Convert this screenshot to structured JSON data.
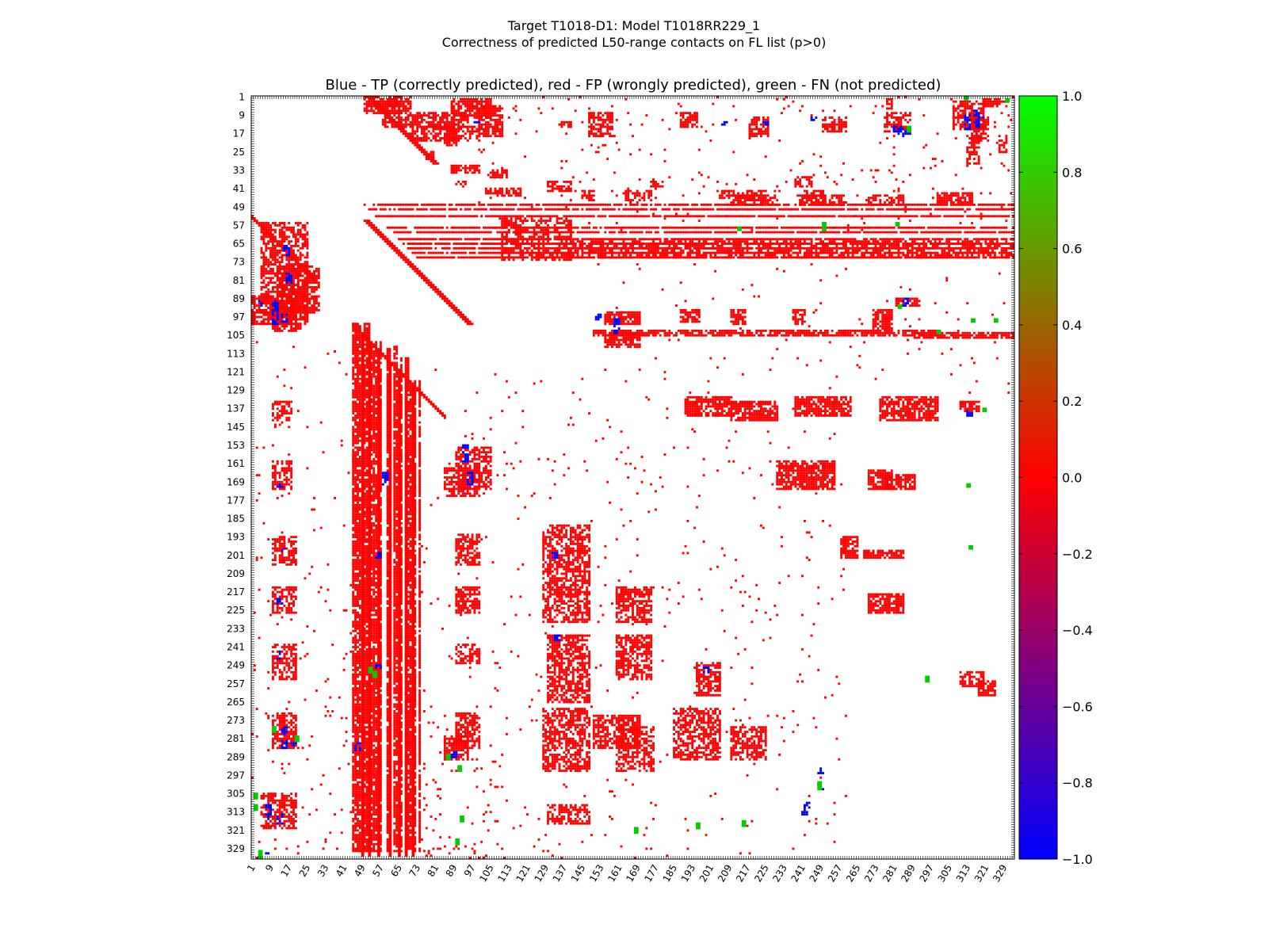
{
  "chart_data": {
    "type": "heatmap",
    "title": "Target T1018-D1: Model T1018RR229_1",
    "subtitle": "Correctness of predicted L50-range contacts on FL list (p>0)",
    "plot_title": "Blue - TP (correctly predicted), red - FP (wrongly predicted), green - FN (not predicted)",
    "n_residues": 333,
    "x_ticks": [
      "1",
      "9",
      "17",
      "25",
      "33",
      "41",
      "49",
      "57",
      "65",
      "73",
      "81",
      "89",
      "97",
      "105",
      "113",
      "121",
      "129",
      "137",
      "145",
      "153",
      "161",
      "169",
      "177",
      "185",
      "193",
      "201",
      "209",
      "217",
      "225",
      "233",
      "241",
      "249",
      "257",
      "265",
      "273",
      "281",
      "289",
      "297",
      "305",
      "313",
      "321",
      "329"
    ],
    "y_ticks": [
      "1",
      "9",
      "17",
      "25",
      "33",
      "41",
      "49",
      "57",
      "65",
      "73",
      "81",
      "89",
      "97",
      "105",
      "113",
      "121",
      "129",
      "137",
      "145",
      "153",
      "161",
      "169",
      "177",
      "185",
      "193",
      "201",
      "209",
      "217",
      "225",
      "233",
      "241",
      "249",
      "257",
      "265",
      "273",
      "281",
      "289",
      "297",
      "305",
      "313",
      "321",
      "329"
    ],
    "colorbar": {
      "range": [
        -1.0,
        1.0
      ],
      "ticks": [
        "1.0",
        "0.8",
        "0.6",
        "0.4",
        "0.2",
        "0.0",
        "−0.2",
        "−0.4",
        "−0.6",
        "−0.8",
        "−1.0"
      ],
      "colors": [
        "#00ff00",
        "#ff0000",
        "#0000ff"
      ]
    },
    "cell_colors": {
      "TP": "#0000ff",
      "FP": "#ff0000",
      "FN": "#00cc00"
    },
    "upper_triangle": {
      "blocks": [
        [
          1,
          8,
          50,
          70
        ],
        [
          3,
          6,
          55,
          65
        ],
        [
          8,
          14,
          58,
          95
        ],
        [
          14,
          20,
          70,
          100
        ],
        [
          2,
          10,
          88,
          105
        ],
        [
          5,
          18,
          100,
          110
        ],
        [
          12,
          14,
          135,
          140
        ],
        [
          8,
          18,
          148,
          158
        ],
        [
          8,
          14,
          188,
          195
        ],
        [
          10,
          18,
          218,
          226
        ],
        [
          10,
          16,
          250,
          260
        ],
        [
          8,
          16,
          277,
          288
        ],
        [
          10,
          20,
          315,
          322
        ],
        [
          2,
          6,
          278,
          280
        ],
        [
          3,
          15,
          307,
          320
        ],
        [
          2,
          5,
          320,
          330
        ],
        [
          18,
          30,
          313,
          318
        ],
        [
          13,
          22,
          85,
          90
        ],
        [
          25,
          28,
          77,
          80
        ],
        [
          18,
          25,
          327,
          330
        ],
        [
          31,
          34,
          88,
          100
        ],
        [
          38,
          40,
          90,
          95
        ],
        [
          33,
          36,
          105,
          112
        ],
        [
          38,
          42,
          130,
          140
        ],
        [
          38,
          40,
          175,
          180
        ],
        [
          36,
          40,
          238,
          245
        ],
        [
          41,
          44,
          103,
          118
        ],
        [
          42,
          46,
          145,
          150
        ],
        [
          42,
          46,
          163,
          175
        ],
        [
          42,
          45,
          205,
          215
        ],
        [
          42,
          46,
          216,
          225
        ],
        [
          42,
          45,
          242,
          250
        ],
        [
          44,
          48,
          210,
          230
        ],
        [
          44,
          48,
          240,
          260
        ],
        [
          44,
          48,
          270,
          285
        ],
        [
          43,
          47,
          300,
          315
        ]
      ],
      "lines": [
        [
          48,
          330
        ],
        [
          50,
          330
        ],
        [
          53,
          330
        ],
        [
          58,
          330
        ],
        [
          60,
          330
        ],
        [
          63,
          330
        ],
        [
          65,
          330
        ],
        [
          67,
          330
        ],
        [
          69,
          330
        ],
        [
          71,
          330
        ]
      ],
      "lines_x_range": [
        100,
        335
      ],
      "tp_cells": [
        [
          7,
          14,
          316
        ],
        [
          9,
          15,
          312
        ],
        [
          10,
          10,
          318
        ],
        [
          12,
          12,
          98
        ],
        [
          14,
          16,
          281
        ],
        [
          16,
          17,
          286
        ],
        [
          10,
          11,
          245
        ],
        [
          12,
          13,
          206
        ],
        [
          12,
          13,
          224
        ]
      ],
      "fn_cells": [
        [
          2,
          3,
          330
        ],
        [
          58,
          59,
          250
        ],
        [
          56,
          57,
          282
        ],
        [
          58,
          59,
          213
        ]
      ]
    },
    "upper_blobs": [
      [
        89,
        92,
        282,
        292
      ],
      [
        95,
        100,
        155,
        170
      ],
      [
        94,
        99,
        188,
        196
      ],
      [
        94,
        100,
        210,
        216
      ],
      [
        94,
        100,
        237,
        242
      ],
      [
        94,
        102,
        272,
        280
      ],
      [
        103,
        105,
        150,
        300
      ],
      [
        104,
        106,
        290,
        335
      ],
      [
        104,
        110,
        155,
        170
      ],
      [
        132,
        140,
        190,
        210
      ],
      [
        134,
        142,
        210,
        230
      ],
      [
        132,
        140,
        238,
        262
      ],
      [
        132,
        142,
        275,
        300
      ],
      [
        134,
        138,
        310,
        318
      ],
      [
        160,
        172,
        230,
        255
      ],
      [
        164,
        172,
        270,
        280
      ],
      [
        166,
        172,
        276,
        290
      ],
      [
        193,
        202,
        258,
        265
      ],
      [
        199,
        202,
        268,
        285
      ],
      [
        218,
        226,
        270,
        285
      ],
      [
        252,
        258,
        310,
        320
      ],
      [
        256,
        262,
        318,
        325
      ]
    ],
    "lower_blobs": [
      [
        56,
        100,
        5,
        25
      ],
      [
        75,
        95,
        12,
        30
      ],
      [
        88,
        100,
        1,
        20
      ],
      [
        93,
        103,
        10,
        22
      ],
      [
        134,
        142,
        10,
        18
      ],
      [
        160,
        172,
        10,
        18
      ],
      [
        193,
        205,
        10,
        20
      ],
      [
        215,
        226,
        10,
        20
      ],
      [
        240,
        255,
        10,
        20
      ],
      [
        270,
        285,
        10,
        20
      ],
      [
        305,
        320,
        5,
        20
      ],
      [
        154,
        172,
        90,
        105
      ],
      [
        163,
        175,
        85,
        100
      ],
      [
        192,
        205,
        90,
        100
      ],
      [
        215,
        226,
        90,
        100
      ],
      [
        240,
        248,
        90,
        100
      ],
      [
        270,
        285,
        90,
        100
      ],
      [
        280,
        290,
        85,
        95
      ],
      [
        188,
        230,
        128,
        148
      ],
      [
        236,
        265,
        130,
        148
      ],
      [
        268,
        295,
        128,
        148
      ],
      [
        310,
        318,
        130,
        148
      ],
      [
        215,
        230,
        160,
        175
      ],
      [
        236,
        255,
        160,
        175
      ],
      [
        271,
        285,
        150,
        170
      ],
      [
        276,
        295,
        160,
        176
      ],
      [
        248,
        262,
        195,
        205
      ],
      [
        268,
        290,
        185,
        205
      ],
      [
        276,
        290,
        210,
        225
      ]
    ],
    "lower_columns": [
      [
        45,
        52,
        100,
        330
      ],
      [
        53,
        58,
        108,
        330
      ],
      [
        60,
        64,
        110,
        330
      ],
      [
        66,
        70,
        115,
        330
      ],
      [
        70,
        75,
        125,
        330
      ]
    ]
  }
}
